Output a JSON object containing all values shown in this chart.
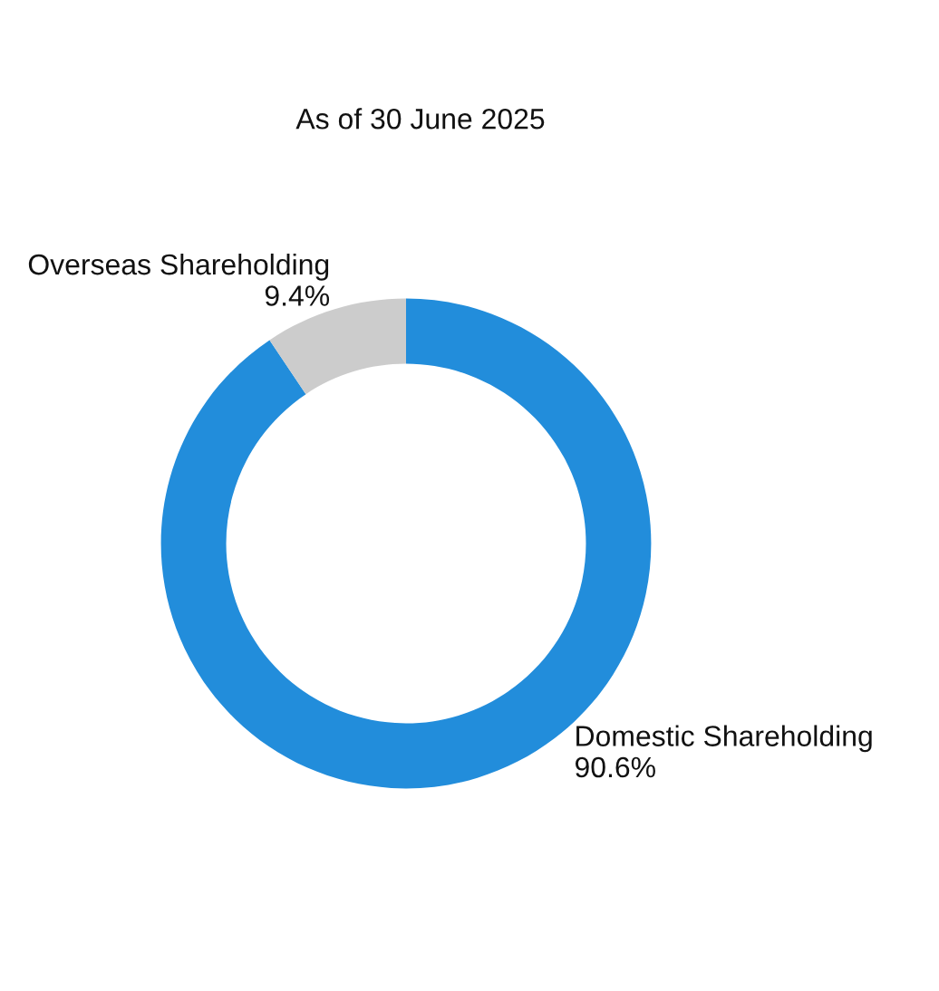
{
  "chart_data": {
    "type": "donut",
    "title": "As of 30 June 2025",
    "categories": [
      "Domestic Shareholding",
      "Overseas Shareholding"
    ],
    "values": [
      90.6,
      9.4
    ],
    "colors": [
      "#228ddb",
      "#cccccc"
    ],
    "value_labels": [
      "90.6%",
      "9.4%"
    ],
    "legend": false
  }
}
